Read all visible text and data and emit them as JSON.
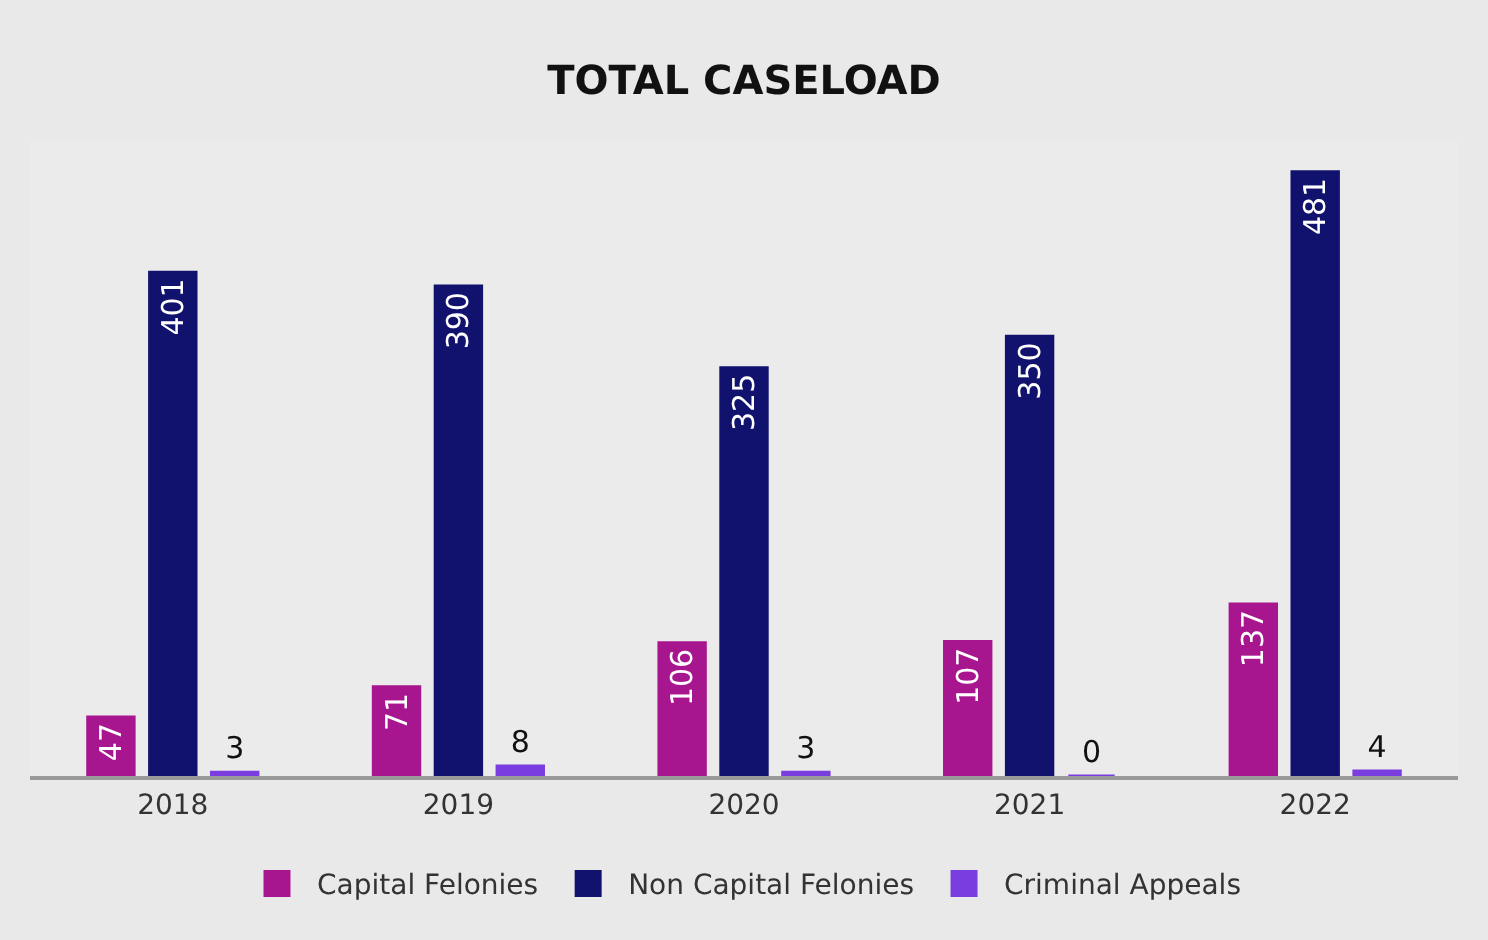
{
  "chart_data": {
    "type": "bar",
    "title": "TOTAL CASELOAD",
    "categories": [
      "2018",
      "2019",
      "2020",
      "2021",
      "2022"
    ],
    "series": [
      {
        "name": "Capital Felonies",
        "color": "#a8168f",
        "values": [
          47,
          71,
          106,
          107,
          137
        ]
      },
      {
        "name": "Non Capital Felonies",
        "color": "#11116e",
        "values": [
          401,
          390,
          325,
          350,
          481
        ]
      },
      {
        "name": "Criminal Appeals",
        "color": "#7a3ee0",
        "values": [
          3,
          8,
          3,
          0,
          4
        ]
      }
    ],
    "data_labels": true,
    "legend": "bottom",
    "grid": false
  }
}
